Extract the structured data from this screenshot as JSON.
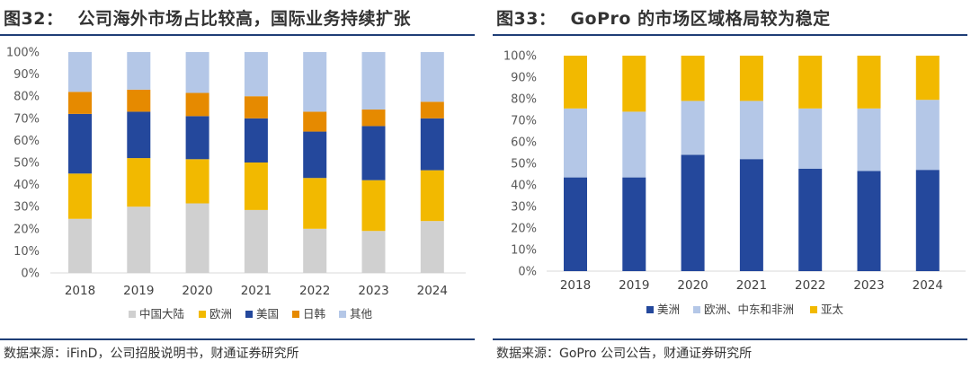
{
  "left": {
    "figure_number": "图32：",
    "title": "公司海外市场占比较高，国际业务持续扩张",
    "source": "数据来源：iFinD，公司招股说明书，财通证券研究所"
  },
  "right": {
    "figure_number": "图33：",
    "title": "GoPro 的市场区域格局较为稳定",
    "source": "数据来源：GoPro 公司公告，财通证券研究所"
  },
  "colors": {
    "gray": "#d0d0d0",
    "yellow": "#f2b900",
    "navy": "#24489c",
    "orange": "#e68a00",
    "lightblue": "#b4c7e7",
    "rule": "#1f3e77"
  },
  "chart_data": [
    {
      "type": "bar",
      "stacked": true,
      "categories": [
        "2018",
        "2019",
        "2020",
        "2021",
        "2022",
        "2023",
        "2024"
      ],
      "series": [
        {
          "name": "中国大陆",
          "color": "#d0d0d0",
          "values": [
            24.5,
            30,
            31.5,
            28.5,
            20,
            19,
            23.5
          ]
        },
        {
          "name": "欧洲",
          "color": "#f2b900",
          "values": [
            20.5,
            22,
            20,
            21.5,
            23,
            23,
            23
          ]
        },
        {
          "name": "美国",
          "color": "#24489c",
          "values": [
            27,
            21,
            19.5,
            20,
            21,
            24.5,
            23.5
          ]
        },
        {
          "name": "日韩",
          "color": "#e68a00",
          "values": [
            10,
            10,
            10.5,
            10,
            9,
            7.5,
            7.5
          ]
        },
        {
          "name": "其他",
          "color": "#b4c7e7",
          "values": [
            18,
            17,
            18.5,
            20,
            27,
            26,
            22.5
          ]
        }
      ],
      "yticks": [
        "0%",
        "10%",
        "20%",
        "30%",
        "40%",
        "50%",
        "60%",
        "70%",
        "80%",
        "90%",
        "100%"
      ],
      "ylim": [
        0,
        100
      ],
      "grid": false,
      "legend_position": "bottom"
    },
    {
      "type": "bar",
      "stacked": true,
      "categories": [
        "2018",
        "2019",
        "2020",
        "2021",
        "2022",
        "2023",
        "2024"
      ],
      "series": [
        {
          "name": "美洲",
          "color": "#24489c",
          "values": [
            43.5,
            43.5,
            54,
            52,
            47.5,
            46.5,
            47
          ]
        },
        {
          "name": "欧洲、中东和非洲",
          "color": "#b4c7e7",
          "values": [
            32,
            30.5,
            25,
            27,
            28,
            29,
            32.5
          ]
        },
        {
          "name": "亚太",
          "color": "#f2b900",
          "values": [
            24.5,
            26,
            21,
            21,
            24.5,
            24.5,
            20.5
          ]
        }
      ],
      "yticks": [
        "0%",
        "10%",
        "20%",
        "30%",
        "40%",
        "50%",
        "60%",
        "70%",
        "80%",
        "90%",
        "100%"
      ],
      "ylim": [
        0,
        100
      ],
      "grid": false,
      "legend_position": "bottom"
    }
  ]
}
